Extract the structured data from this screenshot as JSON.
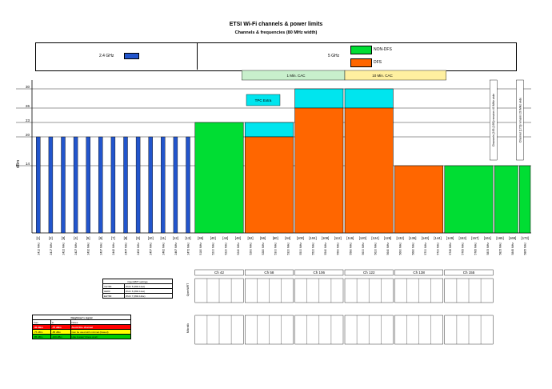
{
  "chart_data": {
    "type": "bar",
    "title": "ETSI Wi-Fi channels & power limits",
    "subtitle": "Channels & frequencies (80 MHz width)",
    "ylabel": "dBm",
    "yticks": [
      14,
      20,
      23,
      26,
      30
    ],
    "legend": {
      "band_24": "2.4 GHz",
      "band_5": "5 GHz",
      "non_dfs": "NON-DFS",
      "dfs": "DFS"
    },
    "cac_labels": {
      "one_min": "1 Min. CAC",
      "ten_min": "10 Min. CAC"
    },
    "tpc_label": "TPC Extra",
    "note_144": "Channels [165-[169] remains 40 MHz wide",
    "note_173": "Channel [173] remains 20 MHz wide",
    "channels": [
      "[1]",
      "[2]",
      "[3]",
      "[4]",
      "[5]",
      "[6]",
      "[7]",
      "[8]",
      "[9]",
      "[10]",
      "[11]",
      "[12]",
      "[13]",
      "[36]",
      "[40]",
      "[44]",
      "[48]",
      "[52]",
      "[56]",
      "[60]",
      "[64]",
      "[100]",
      "[104]",
      "[108]",
      "[112]",
      "[116]",
      "[120]",
      "[124]",
      "[128]",
      "[132]",
      "[136]",
      "[140]",
      "[144]",
      "[149]",
      "[153]",
      "[157]",
      "[161]",
      "[165]",
      "[169]",
      "[173]"
    ],
    "frequencies": [
      "2412 MHz",
      "2417 MHz",
      "2422 MHz",
      "2427 MHz",
      "2432 MHz",
      "2437 MHz",
      "2442 MHz",
      "2447 MHz",
      "2452 MHz",
      "2457 MHz",
      "2462 MHz",
      "2467 MHz",
      "2472 MHz",
      "5180 MHz",
      "5200 MHz",
      "5220 MHz",
      "5240 MHz",
      "5260 MHz",
      "5280 MHz",
      "5300 MHz",
      "5320 MHz",
      "5500 MHz",
      "5520 MHz",
      "5540 MHz",
      "5560 MHz",
      "5580 MHz",
      "5600 MHz",
      "5620 MHz",
      "5640 MHz",
      "5660 MHz",
      "5680 MHz",
      "5700 MHz",
      "5720 MHz",
      "5745 MHz",
      "5765 MHz",
      "5785 MHz",
      "5805 MHz",
      "5825 MHz",
      "5845 MHz",
      "5865 MHz"
    ],
    "bars_24ghz": {
      "series": "2.4 GHz",
      "value": 20,
      "count": 13
    },
    "groups_5ghz": [
      {
        "channels": "[36]-[48]",
        "type": "NON-DFS",
        "value": 23,
        "tpc_extra": 0
      },
      {
        "channels": "[52]-[64]",
        "type": "DFS",
        "value": 20,
        "tpc_extra": 3
      },
      {
        "channels": "[100]-[112]",
        "type": "DFS",
        "value": 26,
        "tpc_extra": 4
      },
      {
        "channels": "[116]-[128]",
        "type": "DFS",
        "value": 26,
        "tpc_extra": 4
      },
      {
        "channels": "[132]-[144]",
        "type": "DFS",
        "value": 14,
        "tpc_extra": 0
      },
      {
        "channels": "[149]-[161]",
        "type": "NON-DFS",
        "value": 14,
        "tpc_extra": 0
      },
      {
        "channels": "[165]-[169]",
        "type": "NON-DFS",
        "value": 14,
        "tpc_extra": 0
      },
      {
        "channels": "[173]",
        "type": "NON-DFS",
        "value": 14,
        "tpc_extra": 0
      }
    ],
    "ylim": [
      0,
      31
    ]
  },
  "tables": {
    "openwrt_title": "OpenWRT settings",
    "openwrt_rows": [
      [
        "VHT80",
        "Wi-Fi 5 (802.11ac)"
      ],
      [
        "HE80",
        "Wi-Fi 6 (802.11ax)"
      ],
      [
        "EHT80",
        "Wi-Fi 7 (802.11be)"
      ]
    ],
    "neighbours_title": "Neighbour's signal",
    "neighbours_head": [
      "from",
      "to",
      "Notes"
    ],
    "neighbours_rows": [
      {
        "from": "-30 dBm",
        "to": "-75 dBm",
        "note": "Avoid this channel",
        "color": "#ff0000"
      },
      {
        "from": "-75 dBm",
        "to": "-85 dBm",
        "note": "Can be used with minimal (biased)",
        "color": "#ffff00"
      },
      {
        "from": "-85 dBm",
        "to": "-100 dBm",
        "note": "Like it wasn't there at all",
        "color": "#00cc00"
      }
    ],
    "groups": [
      "Ch 42",
      "Ch 58",
      "Ch 106",
      "Ch 122",
      "Ch 138",
      "Ch 155"
    ],
    "openwrt_label": "OpenWRT",
    "microtik_label": "Mikrotik",
    "row_hints": [
      "eC",
      "eCe",
      "Ceee",
      "eCee",
      "eeCe",
      "eeeC"
    ]
  },
  "colors": {
    "bar24": "#2255cc",
    "nondfs": "#00dd33",
    "dfs": "#ff6600",
    "tpc": "#00e5ee",
    "cac1": "#c8efcc",
    "cac10": "#fff0a0"
  }
}
